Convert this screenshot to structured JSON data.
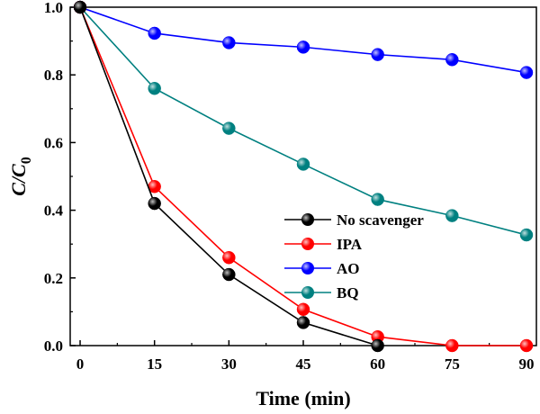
{
  "chart_data": {
    "type": "line",
    "title": "",
    "xlabel": "Time (min)",
    "ylabel": "C/C",
    "ylabel_subscript": "0",
    "xlim": [
      -2,
      92
    ],
    "ylim": [
      0,
      1.0
    ],
    "xticks": [
      0,
      15,
      30,
      45,
      60,
      75,
      90
    ],
    "yticks": [
      0.0,
      0.2,
      0.4,
      0.6,
      0.8,
      1.0
    ],
    "ytick_labels": [
      "0.0",
      "0.2",
      "0.4",
      "0.6",
      "0.8",
      "1.0"
    ],
    "grid": false,
    "legend_position": "center-right",
    "series": [
      {
        "name": "No scavenger",
        "color": "#000000",
        "x": [
          0,
          15,
          30,
          45,
          60
        ],
        "y": [
          1.0,
          0.42,
          0.21,
          0.068,
          0.0
        ]
      },
      {
        "name": "IPA",
        "color": "#ff0000",
        "x": [
          0,
          15,
          30,
          45,
          60,
          75,
          90
        ],
        "y": [
          1.0,
          0.47,
          0.26,
          0.107,
          0.026,
          0.0,
          0.0
        ]
      },
      {
        "name": "AO",
        "color": "#0000ff",
        "x": [
          0,
          15,
          30,
          45,
          60,
          75,
          90
        ],
        "y": [
          1.0,
          0.923,
          0.895,
          0.882,
          0.86,
          0.845,
          0.807
        ]
      },
      {
        "name": "BQ",
        "color": "#008080",
        "x": [
          0,
          15,
          30,
          45,
          60,
          75,
          90
        ],
        "y": [
          1.0,
          0.76,
          0.642,
          0.536,
          0.432,
          0.384,
          0.327
        ]
      }
    ]
  }
}
